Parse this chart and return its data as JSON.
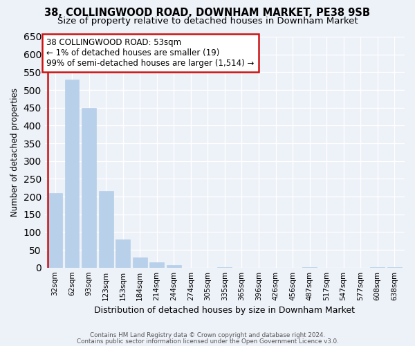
{
  "title_line1": "38, COLLINGWOOD ROAD, DOWNHAM MARKET, PE38 9SB",
  "title_line2": "Size of property relative to detached houses in Downham Market",
  "xlabel": "Distribution of detached houses by size in Downham Market",
  "ylabel": "Number of detached properties",
  "categories": [
    "32sqm",
    "62sqm",
    "93sqm",
    "123sqm",
    "153sqm",
    "184sqm",
    "214sqm",
    "244sqm",
    "274sqm",
    "305sqm",
    "335sqm",
    "365sqm",
    "396sqm",
    "426sqm",
    "456sqm",
    "487sqm",
    "517sqm",
    "547sqm",
    "577sqm",
    "608sqm",
    "638sqm"
  ],
  "values": [
    210,
    530,
    450,
    215,
    80,
    28,
    15,
    8,
    0,
    0,
    2,
    0,
    0,
    0,
    0,
    1,
    0,
    0,
    0,
    1,
    1
  ],
  "bar_color": "#b8d0ea",
  "bar_edge_color": "#b8d0ea",
  "highlight_bar_edge_color": "#cc1111",
  "ylim": [
    0,
    650
  ],
  "yticks": [
    0,
    50,
    100,
    150,
    200,
    250,
    300,
    350,
    400,
    450,
    500,
    550,
    600,
    650
  ],
  "annotation_title": "38 COLLINGWOOD ROAD: 53sqm",
  "annotation_line1": "← 1% of detached houses are smaller (19)",
  "annotation_line2": "99% of semi-detached houses are larger (1,514) →",
  "annotation_box_color": "#ffffff",
  "annotation_box_edge_color": "#cc1111",
  "footer_line1": "Contains HM Land Registry data © Crown copyright and database right 2024.",
  "footer_line2": "Contains public sector information licensed under the Open Government Licence v3.0.",
  "bg_color": "#edf1f8",
  "grid_color": "#ffffff",
  "title_fontsize": 10.5,
  "subtitle_fontsize": 9.5
}
